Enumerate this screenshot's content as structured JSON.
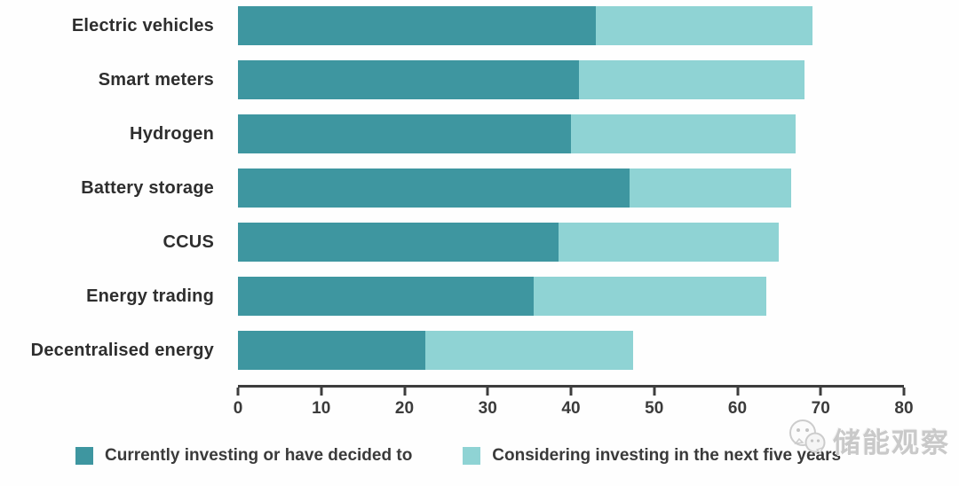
{
  "chart_data": {
    "type": "bar",
    "orientation": "horizontal",
    "stacked": true,
    "title": "",
    "xlabel": "",
    "ylabel": "",
    "grid": false,
    "legend_position": "bottom",
    "xlim": [
      0,
      80
    ],
    "xticks": [
      "0",
      "10",
      "20",
      "30",
      "40",
      "50",
      "60",
      "70",
      "80"
    ],
    "categories": [
      "Electric vehicles",
      "Smart meters",
      "Hydrogen",
      "Battery storage",
      "CCUS",
      "Energy trading",
      "Decentralised energy"
    ],
    "series": [
      {
        "name": "Currently investing or have decided to",
        "color": "#3E96A0",
        "values": [
          43,
          41,
          40,
          47,
          38.5,
          35.5,
          22.5
        ]
      },
      {
        "name": "Considering investing in the next five years",
        "color": "#8FD3D4",
        "values": [
          26,
          27,
          27,
          19.5,
          26.5,
          28,
          25
        ]
      }
    ]
  },
  "axis": {
    "color": "#3d3d3d"
  },
  "watermark": {
    "text": "储能观察",
    "icon": "wechat-icon"
  }
}
